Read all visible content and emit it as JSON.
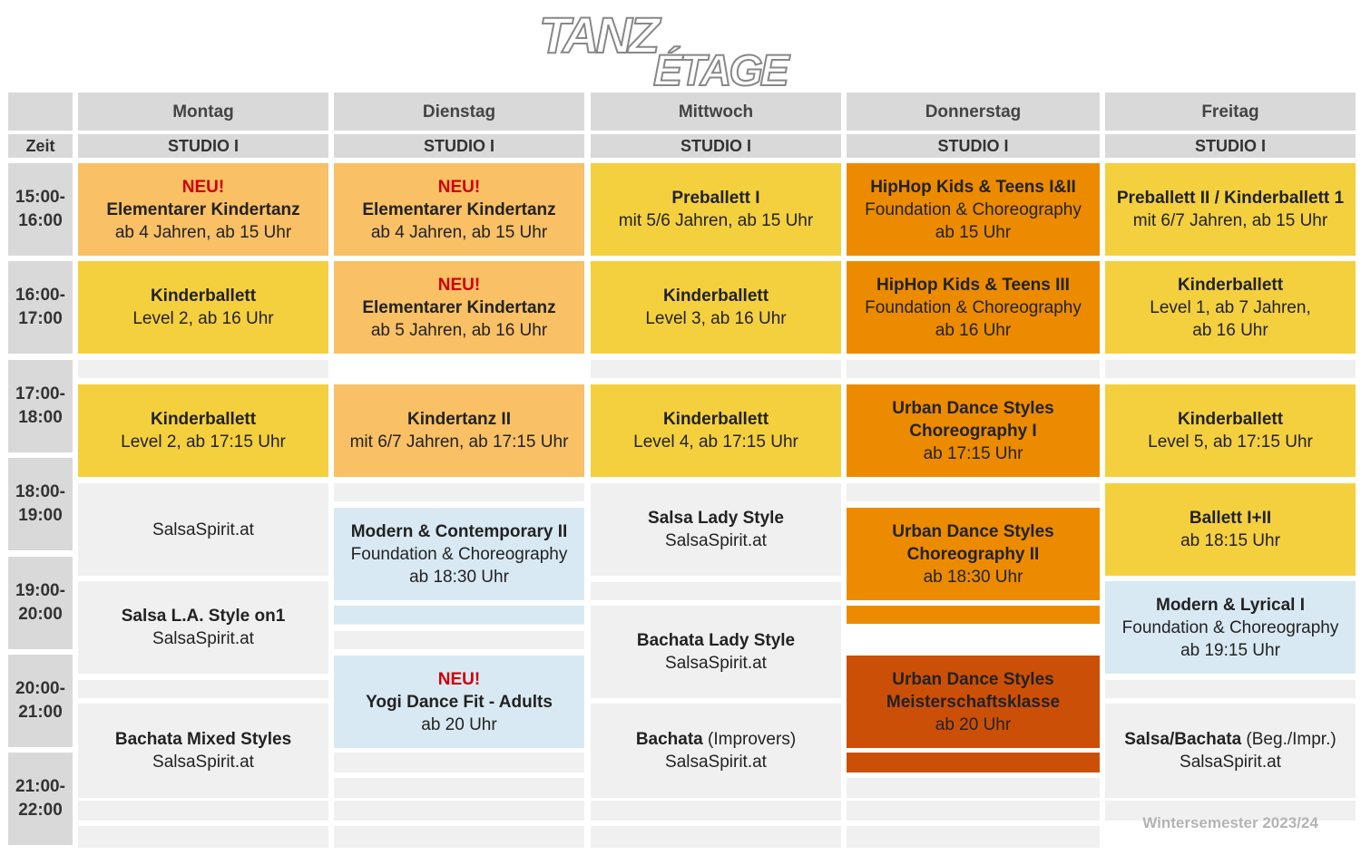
{
  "logo": {
    "line1": "TANZ",
    "line2": "ÉTAGE"
  },
  "header": {
    "days": [
      "Montag",
      "Dienstag",
      "Mittwoch",
      "Donnerstag",
      "Freitag"
    ],
    "zeit_label": "Zeit",
    "studio_label": "STUDIO I"
  },
  "times": [
    [
      "15:00-",
      "16:00"
    ],
    [
      "16:00-",
      "17:00"
    ],
    [
      "17:00-",
      "18:00"
    ],
    [
      "18:00-",
      "19:00"
    ],
    [
      "19:00-",
      "20:00"
    ],
    [
      "20:00-",
      "21:00"
    ],
    [
      "21:00-",
      "22:00"
    ]
  ],
  "classes": {
    "mon": [
      {
        "neu": "NEU!",
        "title": "Elementarer Kindertanz",
        "sub": [
          "ab 4 Jahren, ab 15 Uhr"
        ],
        "color": "#f9c066"
      },
      {
        "title": "Kinderballett",
        "sub": [
          "Level 2, ab 16 Uhr"
        ],
        "color": "#f4d03f"
      },
      {
        "title": "Kinderballett",
        "sub": [
          "Level 2, ab 17:15 Uhr"
        ],
        "color": "#f4d03f"
      },
      {
        "sub": [
          "SalsaSpirit.at"
        ],
        "color": "#f0f0f0"
      },
      {
        "title": "Salsa L.A. Style on1",
        "sub": [
          "SalsaSpirit.at"
        ],
        "color": "#f0f0f0"
      },
      {
        "title": "Bachata Mixed Styles",
        "sub": [
          "SalsaSpirit.at"
        ],
        "color": "#f0f0f0"
      }
    ],
    "tue": [
      {
        "neu": "NEU!",
        "title": "Elementarer Kindertanz",
        "sub": [
          "ab 4 Jahren, ab 15 Uhr"
        ],
        "color": "#f9c066"
      },
      {
        "neu": "NEU!",
        "title": "Elementarer Kindertanz",
        "sub": [
          "ab 5 Jahren, ab 16 Uhr"
        ],
        "color": "#f9c066"
      },
      {
        "title": "Kindertanz II",
        "sub": [
          "mit 6/7 Jahren, ab 17:15 Uhr"
        ],
        "color": "#f9c066"
      },
      {
        "title": "Modern & Contemporary II",
        "sub": [
          "Foundation & Choreography",
          "ab 18:30 Uhr"
        ],
        "color": "#d9e9f3"
      },
      {
        "neu": "NEU!",
        "title": "Yogi Dance Fit - Adults",
        "sub": [
          "ab 20 Uhr"
        ],
        "color": "#d9e9f3"
      }
    ],
    "wed": [
      {
        "title": "Preballett I",
        "sub": [
          "mit 5/6 Jahren, ab 15 Uhr"
        ],
        "color": "#f4d03f"
      },
      {
        "title": "Kinderballett",
        "sub": [
          "Level 3, ab 16 Uhr"
        ],
        "color": "#f4d03f"
      },
      {
        "title": "Kinderballett",
        "sub": [
          "Level 4, ab 17:15 Uhr"
        ],
        "color": "#f4d03f"
      },
      {
        "title": "Salsa Lady Style",
        "sub": [
          "SalsaSpirit.at"
        ],
        "color": "#f0f0f0"
      },
      {
        "title": "Bachata Lady Style",
        "sub": [
          "SalsaSpirit.at"
        ],
        "color": "#f0f0f0"
      },
      {
        "title": "Bachata",
        "title_extra": " (Improvers)",
        "sub": [
          "SalsaSpirit.at"
        ],
        "color": "#f0f0f0"
      }
    ],
    "thu": [
      {
        "title": "HipHop Kids & Teens I&II",
        "sub": [
          "Foundation & Choreography",
          "ab 15 Uhr"
        ],
        "color": "#ec8b00"
      },
      {
        "title": "HipHop Kids & Teens III",
        "sub": [
          "Foundation & Choreography",
          "ab 16 Uhr"
        ],
        "color": "#ec8b00"
      },
      {
        "title": "Urban Dance Styles",
        "title2": "Choreography I",
        "sub": [
          "ab 17:15 Uhr"
        ],
        "color": "#ec8b00"
      },
      {
        "title": "Urban Dance Styles",
        "title2": "Choreography II",
        "sub": [
          "ab 18:30 Uhr"
        ],
        "color": "#ec8b00"
      },
      {
        "title": "Urban Dance Styles",
        "title2": "Meisterschaftsklasse",
        "sub": [
          "ab 20 Uhr"
        ],
        "color": "#cc4f08"
      }
    ],
    "fri": [
      {
        "title": "Preballett II / Kinderballett 1",
        "sub": [
          "mit 6/7 Jahren, ab 15 Uhr"
        ],
        "color": "#f4d03f"
      },
      {
        "title": "Kinderballett",
        "sub": [
          "Level 1, ab 7 Jahren,",
          "ab 16 Uhr"
        ],
        "color": "#f4d03f"
      },
      {
        "title": "Kinderballett",
        "sub": [
          "Level 5, ab 17:15 Uhr"
        ],
        "color": "#f4d03f"
      },
      {
        "title": "Ballett I+II",
        "sub": [
          "ab 18:15 Uhr"
        ],
        "color": "#f4d03f"
      },
      {
        "title": "Modern & Lyrical I",
        "sub": [
          "Foundation & Choreography",
          "ab 19:15 Uhr"
        ],
        "color": "#d9e9f3"
      },
      {
        "title": "Salsa/Bachata",
        "title_extra": " (Beg./Impr.)",
        "sub": [
          "SalsaSpirit.at"
        ],
        "color": "#f0f0f0"
      }
    ]
  },
  "footer": {
    "semester": "Wintersemester 2023/24"
  }
}
